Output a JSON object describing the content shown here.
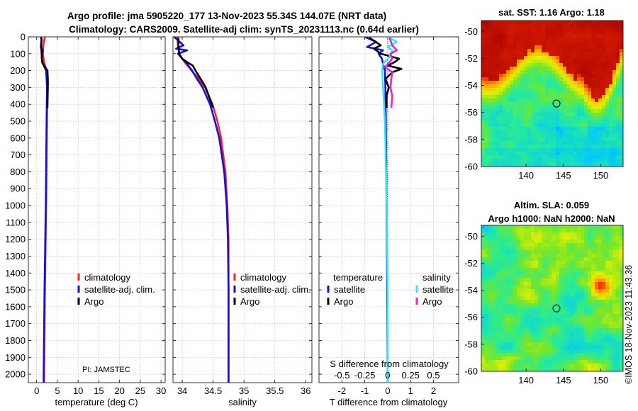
{
  "header": {
    "title_line1": "Argo profile: jma 5905220_177 13-Nov-2023 55.34S 144.07E (NRT data)",
    "title_line2": "Climatology: CARS2009. Satellite-adj clim: synTS_20231113.nc (0.64d earlier)"
  },
  "footer": {
    "watermark": "©IMOS 18-Nov-2023 11:43:36"
  },
  "colors": {
    "climatology": "#ff2020",
    "satellite_adj": "#1010e0",
    "argo": "#000000",
    "satellite_sal": "#30e8e8",
    "argo_sal": "#e020e0",
    "grid": "#b4b4b4"
  },
  "chart_data": [
    {
      "id": "temperature",
      "type": "line",
      "xlabel": "temperature (deg C)",
      "ylabel": "",
      "xlim": [
        -2,
        31
      ],
      "ylim": [
        2050,
        0
      ],
      "xticks": [
        0,
        5,
        10,
        15,
        20,
        25,
        30
      ],
      "xtick_labels": [
        "0",
        "5",
        "10",
        "15",
        "20",
        "25",
        "30"
      ],
      "yticks": [
        0,
        100,
        200,
        300,
        400,
        500,
        600,
        700,
        800,
        900,
        1000,
        1100,
        1200,
        1300,
        1400,
        1500,
        1600,
        1700,
        1800,
        1900,
        2000
      ],
      "ytick_labels": [
        "0",
        "100",
        "200",
        "300",
        "400",
        "500",
        "600",
        "700",
        "800",
        "900",
        "1000",
        "1100",
        "1200",
        "1300",
        "1400",
        "1500",
        "1600",
        "1700",
        "1800",
        "1900",
        "2000"
      ],
      "legend": {
        "position": "right-middle",
        "entries": [
          "climatology",
          "satellite-adj. clim.",
          "Argo"
        ]
      },
      "annotation": "PI: JAMSTEC",
      "series": [
        {
          "name": "climatology",
          "color_key": "climatology",
          "depth": [
            0,
            50,
            100,
            150,
            200,
            300,
            500,
            1000,
            1500,
            2000,
            2050
          ],
          "values": [
            2.0,
            1.6,
            1.5,
            1.8,
            2.4,
            2.6,
            2.5,
            2.3,
            2.0,
            1.8,
            1.8
          ]
        },
        {
          "name": "satellite-adj. clim.",
          "color_key": "satellite_adj",
          "depth": [
            0,
            20,
            60,
            80,
            120,
            160,
            200,
            300,
            500,
            1000,
            1500,
            2000,
            2050
          ],
          "values": [
            1.0,
            1.2,
            1.0,
            1.5,
            1.2,
            1.5,
            2.3,
            2.5,
            2.4,
            2.2,
            1.9,
            1.7,
            1.7
          ]
        },
        {
          "name": "Argo",
          "color_key": "argo",
          "depth": [
            5,
            50,
            100,
            150,
            180,
            200,
            250,
            300,
            420
          ],
          "values": [
            1.2,
            1.1,
            1.2,
            1.3,
            2.0,
            2.6,
            2.7,
            2.7,
            2.6
          ]
        }
      ]
    },
    {
      "id": "salinity",
      "type": "line",
      "xlabel": "salinity",
      "ylabel": "",
      "xlim": [
        33.85,
        36.1
      ],
      "ylim": [
        2050,
        0
      ],
      "xticks": [
        34,
        34.5,
        35,
        35.5,
        36
      ],
      "xtick_labels": [
        "34",
        "34.5",
        "35",
        "35.5",
        "36"
      ],
      "legend": {
        "position": "right-middle",
        "entries": [
          "climatology",
          "satellite-adj. clim.",
          "Argo"
        ]
      },
      "series": [
        {
          "name": "climatology",
          "color_key": "climatology",
          "depth": [
            0,
            50,
            100,
            130,
            160,
            200,
            250,
            300,
            400,
            500,
            600,
            800,
            1000,
            1200,
            1500,
            2050
          ],
          "values": [
            33.92,
            33.93,
            33.95,
            34.0,
            34.06,
            34.15,
            34.27,
            34.37,
            34.49,
            34.57,
            34.63,
            34.7,
            34.73,
            34.75,
            34.75,
            34.75
          ]
        },
        {
          "name": "satellite-adj. clim.",
          "color_key": "satellite_adj",
          "depth": [
            0,
            50,
            70,
            80,
            100,
            130,
            160,
            200,
            250,
            300,
            400,
            500,
            600,
            800,
            1000,
            1200,
            1500,
            2050
          ],
          "values": [
            33.87,
            34.02,
            33.9,
            34.08,
            33.93,
            34.0,
            34.08,
            34.16,
            34.24,
            34.33,
            34.45,
            34.53,
            34.6,
            34.68,
            34.72,
            34.74,
            34.75,
            34.75
          ]
        },
        {
          "name": "Argo",
          "color_key": "argo",
          "depth": [
            5,
            50,
            100,
            130,
            150,
            170,
            190,
            210,
            250,
            300,
            350,
            420
          ],
          "values": [
            33.94,
            33.94,
            33.95,
            34.0,
            34.08,
            34.17,
            34.2,
            34.23,
            34.3,
            34.38,
            34.43,
            34.5
          ]
        }
      ]
    },
    {
      "id": "difference",
      "type": "line",
      "xlabel": "T difference from climatology",
      "x2label": "S difference from climatology",
      "xlim": [
        -3,
        3.1
      ],
      "x2lim": [
        -0.75,
        0.775
      ],
      "ylim": [
        2050,
        0
      ],
      "xticks": [
        -2,
        -1,
        0,
        1,
        2
      ],
      "xtick_labels": [
        "-2",
        "-1",
        "0",
        "1",
        "2"
      ],
      "x2ticks": [
        -0.5,
        -0.25,
        0,
        0.25,
        0.5
      ],
      "x2tick_labels": [
        "-0.5",
        "-0.25",
        "0",
        "0.25",
        "0.5"
      ],
      "legend_temperature": {
        "title": "temperature",
        "entries": [
          "satellite",
          "Argo"
        ]
      },
      "legend_salinity": {
        "title": "salinity",
        "entries": [
          "satellite",
          "Argo"
        ]
      },
      "series": [
        {
          "name": "temperature satellite",
          "axis": "T",
          "color_key": "satellite_adj",
          "depth": [
            0,
            30,
            60,
            80,
            100,
            130,
            160,
            200,
            300,
            500,
            1000,
            1500,
            2050
          ],
          "values": [
            -1.0,
            -0.5,
            -0.9,
            -0.2,
            -0.4,
            -0.25,
            -0.2,
            -0.12,
            -0.1,
            -0.08,
            -0.05,
            -0.02,
            0.0
          ]
        },
        {
          "name": "temperature Argo",
          "axis": "T",
          "color_key": "argo",
          "depth": [
            5,
            50,
            70,
            100,
            130,
            150,
            170,
            190,
            210,
            250,
            300,
            350,
            420
          ],
          "values": [
            -0.8,
            -0.3,
            -0.6,
            -0.3,
            0.5,
            0.3,
            0.0,
            0.6,
            0.2,
            -0.1,
            0.05,
            -0.05,
            -0.05
          ]
        },
        {
          "name": "salinity satellite",
          "axis": "S",
          "color_key": "satellite_sal",
          "depth": [
            0,
            30,
            60,
            80,
            120,
            160,
            200,
            300,
            500,
            1000,
            1500,
            2050
          ],
          "values": [
            0.0,
            0.1,
            0.0,
            0.05,
            0.02,
            -0.05,
            -0.06,
            -0.05,
            -0.03,
            -0.01,
            0.0,
            0.0
          ]
        },
        {
          "name": "salinity Argo",
          "axis": "S",
          "color_key": "argo_sal",
          "depth": [
            5,
            50,
            80,
            100,
            130,
            150,
            180,
            210,
            250,
            300,
            350,
            420
          ],
          "values": [
            0.02,
            0.05,
            0.1,
            0.03,
            0.05,
            0.02,
            -0.03,
            0.05,
            0.04,
            0.03,
            0.05,
            0.04
          ]
        }
      ]
    },
    {
      "id": "sst_map",
      "type": "heatmap",
      "title": "sat. SST: 1.16 Argo: 1.18",
      "xlim": [
        134,
        153
      ],
      "ylim": [
        -60,
        -49.2
      ],
      "xticks": [
        140,
        145,
        150
      ],
      "xtick_labels": [
        "140",
        "145",
        "150"
      ],
      "yticks": [
        -50,
        -52,
        -54,
        -56,
        -58,
        -60
      ],
      "ytick_labels": [
        "-50",
        "-52",
        "-54",
        "-56",
        "-58",
        "-60"
      ],
      "marker": {
        "lon": 144.07,
        "lat": -55.34,
        "label": "Argo position"
      }
    },
    {
      "id": "sla_map",
      "type": "heatmap",
      "title": "Altim. SLA: 0.059",
      "subtitle": "Argo h1000: NaN h2000: NaN",
      "xlim": [
        134,
        153
      ],
      "ylim": [
        -60,
        -49.2
      ],
      "xticks": [
        140,
        145,
        150
      ],
      "xtick_labels": [
        "140",
        "145",
        "150"
      ],
      "yticks": [
        -50,
        -52,
        -54,
        -56,
        -58,
        -60
      ],
      "ytick_labels": [
        "-50",
        "-52",
        "-54",
        "-56",
        "-58",
        "-60"
      ],
      "marker": {
        "lon": 144.07,
        "lat": -55.34,
        "label": "Argo position"
      }
    }
  ]
}
